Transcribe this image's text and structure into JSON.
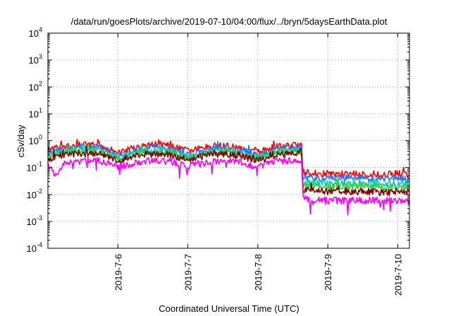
{
  "chart_data": {
    "type": "line",
    "title": "/data/run/goesPlots/archive/2019-07-10/04:00/flux/../bryn/5daysEarthData.plot",
    "xlabel": "Coordinated Universal Time (UTC)",
    "ylabel": "cSv/day",
    "yscale": "log",
    "ylim": [
      0.0001,
      10000
    ],
    "xlim": [
      "2019-07-05T00:00",
      "2019-07-10T04:00"
    ],
    "grid": true,
    "legend": "none",
    "x_ticks": [
      {
        "date": "2019-07-06T00:00",
        "label": "2019-7-6"
      },
      {
        "date": "2019-07-07T00:00",
        "label": "2019-7-7"
      },
      {
        "date": "2019-07-08T00:00",
        "label": "2019-7-8"
      },
      {
        "date": "2019-07-09T00:00",
        "label": "2019-7-9"
      },
      {
        "date": "2019-07-10T00:00",
        "label": "2019-7-10"
      }
    ],
    "y_ticks": [
      {
        "value": 0.0001,
        "base": "10",
        "exp": "-4"
      },
      {
        "value": 0.001,
        "base": "10",
        "exp": "-3"
      },
      {
        "value": 0.01,
        "base": "10",
        "exp": "-2"
      },
      {
        "value": 0.1,
        "base": "10",
        "exp": "-1"
      },
      {
        "value": 1,
        "base": "10",
        "exp": "0"
      },
      {
        "value": 10,
        "base": "10",
        "exp": "1"
      },
      {
        "value": 100,
        "base": "10",
        "exp": "2"
      },
      {
        "value": 1000,
        "base": "10",
        "exp": "3"
      },
      {
        "value": 10000,
        "base": "10",
        "exp": "4"
      }
    ],
    "series": [
      {
        "color": "#ff0000",
        "x": [
          "2019-07-05T00:00",
          "2019-07-05T06:00",
          "2019-07-05T12:00",
          "2019-07-05T18:00",
          "2019-07-06T00:00",
          "2019-07-06T06:00",
          "2019-07-06T12:00",
          "2019-07-06T18:00",
          "2019-07-07T00:00",
          "2019-07-07T06:00",
          "2019-07-07T12:00",
          "2019-07-07T18:00",
          "2019-07-08T00:00",
          "2019-07-08T06:00",
          "2019-07-08T12:00",
          "2019-07-08T15:00",
          "2019-07-08T15:30",
          "2019-07-08T20:00",
          "2019-07-09T00:00",
          "2019-07-09T06:00",
          "2019-07-09T12:00",
          "2019-07-09T18:00",
          "2019-07-10T00:00",
          "2019-07-10T04:00"
        ],
        "y": [
          0.45,
          0.6,
          0.7,
          0.65,
          0.35,
          0.55,
          0.7,
          0.65,
          0.4,
          0.55,
          0.65,
          0.55,
          0.35,
          0.6,
          0.65,
          0.65,
          0.07,
          0.06,
          0.06,
          0.055,
          0.06,
          0.055,
          0.06,
          0.05
        ]
      },
      {
        "color": "#1e78ff",
        "x": [
          "2019-07-05T00:00",
          "2019-07-05T06:00",
          "2019-07-05T12:00",
          "2019-07-05T18:00",
          "2019-07-06T00:00",
          "2019-07-06T06:00",
          "2019-07-06T12:00",
          "2019-07-06T18:00",
          "2019-07-07T00:00",
          "2019-07-07T06:00",
          "2019-07-07T12:00",
          "2019-07-07T18:00",
          "2019-07-08T00:00",
          "2019-07-08T06:00",
          "2019-07-08T12:00",
          "2019-07-08T15:00",
          "2019-07-08T15:30",
          "2019-07-08T20:00",
          "2019-07-09T00:00",
          "2019-07-09T06:00",
          "2019-07-09T12:00",
          "2019-07-09T18:00",
          "2019-07-10T00:00",
          "2019-07-10T04:00"
        ],
        "y": [
          0.35,
          0.5,
          0.6,
          0.55,
          0.28,
          0.45,
          0.55,
          0.5,
          0.3,
          0.45,
          0.55,
          0.45,
          0.28,
          0.5,
          0.55,
          0.55,
          0.045,
          0.04,
          0.04,
          0.04,
          0.04,
          0.038,
          0.04,
          0.035
        ]
      },
      {
        "color": "#00d2c8",
        "x": [
          "2019-07-05T00:00",
          "2019-07-05T06:00",
          "2019-07-05T12:00",
          "2019-07-05T18:00",
          "2019-07-06T00:00",
          "2019-07-06T06:00",
          "2019-07-06T12:00",
          "2019-07-06T18:00",
          "2019-07-07T00:00",
          "2019-07-07T06:00",
          "2019-07-07T12:00",
          "2019-07-07T18:00",
          "2019-07-08T00:00",
          "2019-07-08T06:00",
          "2019-07-08T12:00",
          "2019-07-08T15:00",
          "2019-07-08T15:30",
          "2019-07-08T20:00",
          "2019-07-09T00:00",
          "2019-07-09T06:00",
          "2019-07-09T12:00",
          "2019-07-09T18:00",
          "2019-07-10T00:00",
          "2019-07-10T04:00"
        ],
        "y": [
          0.28,
          0.4,
          0.45,
          0.42,
          0.22,
          0.36,
          0.42,
          0.4,
          0.24,
          0.35,
          0.42,
          0.36,
          0.22,
          0.38,
          0.42,
          0.42,
          0.028,
          0.026,
          0.025,
          0.025,
          0.026,
          0.024,
          0.025,
          0.022
        ]
      },
      {
        "color": "#32cd32",
        "x": [
          "2019-07-05T00:00",
          "2019-07-05T06:00",
          "2019-07-05T12:00",
          "2019-07-05T18:00",
          "2019-07-06T00:00",
          "2019-07-06T06:00",
          "2019-07-06T12:00",
          "2019-07-06T18:00",
          "2019-07-07T00:00",
          "2019-07-07T06:00",
          "2019-07-07T12:00",
          "2019-07-07T18:00",
          "2019-07-08T00:00",
          "2019-07-08T06:00",
          "2019-07-08T12:00",
          "2019-07-08T15:00",
          "2019-07-08T15:30",
          "2019-07-08T20:00",
          "2019-07-09T00:00",
          "2019-07-09T06:00",
          "2019-07-09T12:00",
          "2019-07-09T18:00",
          "2019-07-10T00:00",
          "2019-07-10T04:00"
        ],
        "y": [
          0.25,
          0.35,
          0.4,
          0.38,
          0.2,
          0.32,
          0.38,
          0.36,
          0.22,
          0.32,
          0.38,
          0.32,
          0.2,
          0.34,
          0.38,
          0.38,
          0.022,
          0.02,
          0.02,
          0.02,
          0.021,
          0.019,
          0.02,
          0.018
        ]
      },
      {
        "color": "#800000",
        "x": [
          "2019-07-05T00:00",
          "2019-07-05T06:00",
          "2019-07-05T12:00",
          "2019-07-05T18:00",
          "2019-07-06T00:00",
          "2019-07-06T06:00",
          "2019-07-06T12:00",
          "2019-07-06T18:00",
          "2019-07-07T00:00",
          "2019-07-07T06:00",
          "2019-07-07T12:00",
          "2019-07-07T18:00",
          "2019-07-08T00:00",
          "2019-07-08T06:00",
          "2019-07-08T12:00",
          "2019-07-08T15:00",
          "2019-07-08T15:30",
          "2019-07-08T20:00",
          "2019-07-09T00:00",
          "2019-07-09T06:00",
          "2019-07-09T12:00",
          "2019-07-09T18:00",
          "2019-07-10T00:00",
          "2019-07-10T04:00"
        ],
        "y": [
          0.22,
          0.3,
          0.33,
          0.32,
          0.18,
          0.28,
          0.32,
          0.3,
          0.2,
          0.28,
          0.32,
          0.28,
          0.18,
          0.3,
          0.32,
          0.32,
          0.015,
          0.013,
          0.013,
          0.013,
          0.013,
          0.012,
          0.013,
          0.012
        ]
      },
      {
        "color": "#ff00ff",
        "x": [
          "2019-07-05T00:00",
          "2019-07-05T03:00",
          "2019-07-05T06:00",
          "2019-07-05T12:00",
          "2019-07-05T18:00",
          "2019-07-06T00:00",
          "2019-07-06T06:00",
          "2019-07-06T12:00",
          "2019-07-06T18:00",
          "2019-07-07T00:00",
          "2019-07-07T06:00",
          "2019-07-07T12:00",
          "2019-07-07T18:00",
          "2019-07-08T00:00",
          "2019-07-08T06:00",
          "2019-07-08T12:00",
          "2019-07-08T15:00",
          "2019-07-08T15:30",
          "2019-07-08T20:00",
          "2019-07-09T00:00",
          "2019-07-09T06:00",
          "2019-07-09T12:00",
          "2019-07-09T18:00",
          "2019-07-10T00:00",
          "2019-07-10T04:00"
        ],
        "y": [
          0.12,
          0.05,
          0.15,
          0.2,
          0.18,
          0.1,
          0.15,
          0.18,
          0.17,
          0.12,
          0.15,
          0.18,
          0.16,
          0.1,
          0.17,
          0.18,
          0.18,
          0.007,
          0.006,
          0.006,
          0.006,
          0.006,
          0.006,
          0.006,
          0.006
        ]
      }
    ]
  }
}
